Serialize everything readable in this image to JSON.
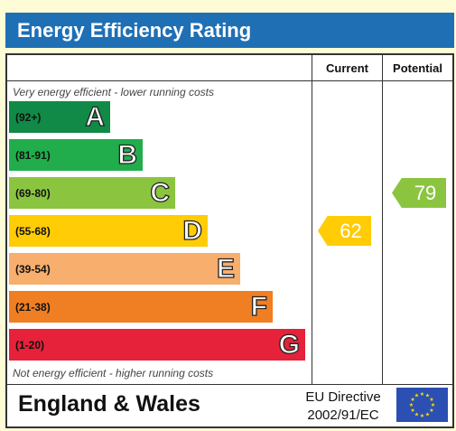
{
  "header": {
    "title": "Energy Efficiency Rating"
  },
  "columns": {
    "current": "Current",
    "potential": "Potential"
  },
  "captions": {
    "top": "Very energy efficient - lower running costs",
    "bottom": "Not energy efficient - higher running costs"
  },
  "chart_data": {
    "type": "bar",
    "categories": [
      "A",
      "B",
      "C",
      "D",
      "E",
      "F",
      "G"
    ],
    "bands": [
      {
        "letter": "A",
        "range": "(92+)",
        "color": "#108a46"
      },
      {
        "letter": "B",
        "range": "(81-91)",
        "color": "#21ad4b"
      },
      {
        "letter": "C",
        "range": "(69-80)",
        "color": "#8bc540"
      },
      {
        "letter": "D",
        "range": "(55-68)",
        "color": "#ffcc05"
      },
      {
        "letter": "E",
        "range": "(39-54)",
        "color": "#f8ae6c"
      },
      {
        "letter": "F",
        "range": "(21-38)",
        "color": "#f07e22"
      },
      {
        "letter": "G",
        "range": "(1-20)",
        "color": "#e5223a"
      }
    ],
    "current": {
      "value": 62,
      "label": "62",
      "band": "D",
      "color": "#ffcc05"
    },
    "potential": {
      "value": 79,
      "label": "79",
      "band": "C",
      "color": "#8bc540"
    }
  },
  "footer": {
    "region": "England & Wales",
    "directive_line1": "EU Directive",
    "directive_line2": "2002/91/EC"
  },
  "colors": {
    "title_bar": "#1f6fb5",
    "background": "#fefcd6",
    "eu_flag": "#2b4fb3",
    "eu_stars": "#ffdd00"
  },
  "icons": {
    "eu_flag": "eu-flag-icon"
  }
}
